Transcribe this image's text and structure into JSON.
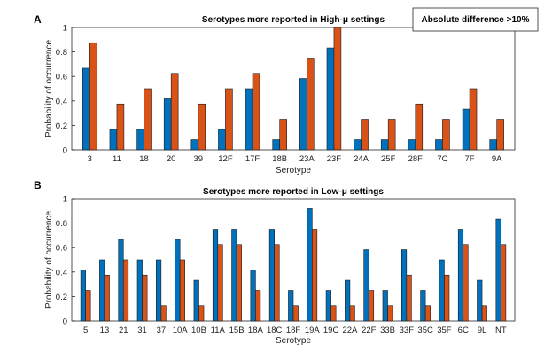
{
  "chart_data": [
    {
      "panel_label": "A",
      "type": "bar",
      "title": "Serotypes more reported in High-μ settings",
      "xlabel": "Serotype",
      "ylabel": "Probability of occurrence",
      "ylim": [
        0,
        1
      ],
      "yticks": [
        "0",
        "0.2",
        "0.4",
        "0.6",
        "0.8",
        "1"
      ],
      "categories": [
        "3",
        "11",
        "18",
        "20",
        "39",
        "12F",
        "17F",
        "18B",
        "23A",
        "23F",
        "24A",
        "25F",
        "28F",
        "7C",
        "7F",
        "9A"
      ],
      "series": [
        {
          "color": "#0072BD",
          "values": [
            0.667,
            0.167,
            0.167,
            0.417,
            0.083,
            0.167,
            0.5,
            0.083,
            0.583,
            0.833,
            0.083,
            0.083,
            0.083,
            0.083,
            0.333,
            0.083
          ]
        },
        {
          "color": "#D95319",
          "values": [
            0.875,
            0.375,
            0.5,
            0.625,
            0.375,
            0.5,
            0.625,
            0.25,
            0.75,
            1.0,
            0.25,
            0.25,
            0.375,
            0.25,
            0.5,
            0.25
          ]
        }
      ],
      "grid": false,
      "legend_text": "Absolute difference >10%"
    },
    {
      "panel_label": "B",
      "type": "bar",
      "title": "Serotypes more reported in Low-μ settings",
      "xlabel": "Serotype",
      "ylabel": "Probability of occurrence",
      "ylim": [
        0,
        1
      ],
      "yticks": [
        "0",
        "0.2",
        "0.4",
        "0.6",
        "0.8",
        "1"
      ],
      "categories": [
        "5",
        "13",
        "21",
        "31",
        "37",
        "10A",
        "10B",
        "11A",
        "15B",
        "18A",
        "18C",
        "18F",
        "19A",
        "19C",
        "22A",
        "22F",
        "33B",
        "33F",
        "35C",
        "35F",
        "6C",
        "9L",
        "NT"
      ],
      "series": [
        {
          "color": "#0072BD",
          "values": [
            0.417,
            0.5,
            0.667,
            0.5,
            0.5,
            0.667,
            0.333,
            0.75,
            0.75,
            0.417,
            0.75,
            0.25,
            0.917,
            0.25,
            0.333,
            0.583,
            0.25,
            0.583,
            0.25,
            0.5,
            0.75,
            0.333,
            0.833
          ]
        },
        {
          "color": "#D95319",
          "values": [
            0.25,
            0.375,
            0.5,
            0.375,
            0.125,
            0.5,
            0.125,
            0.625,
            0.625,
            0.25,
            0.625,
            0.125,
            0.75,
            0.125,
            0.125,
            0.25,
            0.125,
            0.375,
            0.125,
            0.375,
            0.625,
            0.125,
            0.625
          ]
        }
      ],
      "grid": false
    }
  ]
}
